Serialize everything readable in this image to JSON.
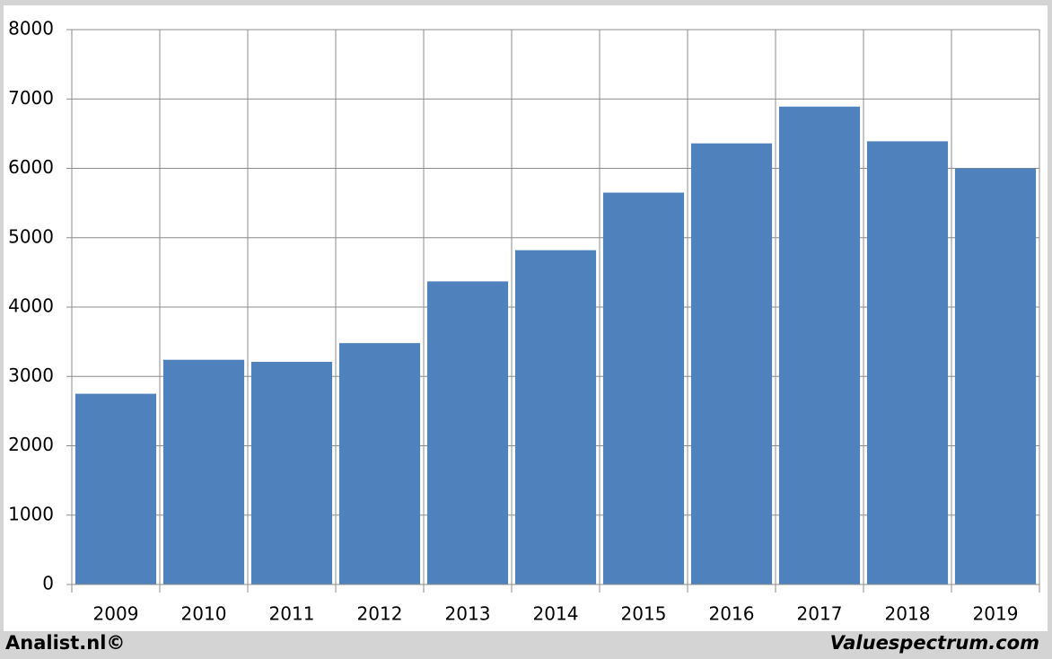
{
  "chart_data": {
    "type": "bar",
    "categories": [
      "2009",
      "2010",
      "2011",
      "2012",
      "2013",
      "2014",
      "2015",
      "2016",
      "2017",
      "2018",
      "2019"
    ],
    "values": [
      2750,
      3240,
      3210,
      3480,
      4370,
      4820,
      5650,
      6360,
      6890,
      6390,
      6000
    ],
    "color": "#4f81bd",
    "ylim": [
      0,
      8000
    ],
    "yticks": [
      0,
      1000,
      2000,
      3000,
      4000,
      5000,
      6000,
      7000,
      8000
    ],
    "grid": true,
    "footer_left": "Analist.nl©",
    "footer_right": "Valuespectrum.com"
  }
}
